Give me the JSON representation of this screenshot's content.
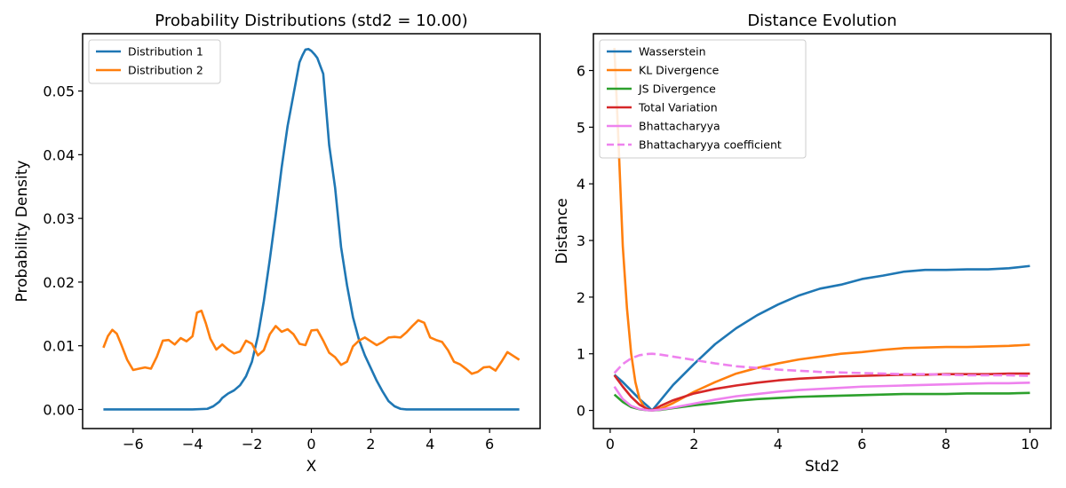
{
  "chart_data": [
    {
      "type": "line",
      "title": "Probability Distributions (std2 = 10.00)",
      "xlabel": "X",
      "ylabel": "Probability Density",
      "xlim": [
        -7.7,
        7.7
      ],
      "ylim": [
        -0.003,
        0.059
      ],
      "xticks": [
        -6,
        -4,
        -2,
        0,
        2,
        4,
        6
      ],
      "xtick_labels": [
        "−6",
        "−4",
        "−2",
        "0",
        "2",
        "4",
        "6"
      ],
      "yticks": [
        0.0,
        0.01,
        0.02,
        0.03,
        0.04,
        0.05
      ],
      "ytick_labels": [
        "0.00",
        "0.01",
        "0.02",
        "0.03",
        "0.04",
        "0.05"
      ],
      "grid": false,
      "legend_position": "upper left",
      "series": [
        {
          "name": "Distribution 1",
          "color": "#1f77b4",
          "dash": false,
          "x": [
            -7,
            -6,
            -5,
            -4,
            -3.5,
            -3.3,
            -3.1,
            -3,
            -2.8,
            -2.6,
            -2.4,
            -2.2,
            -2.0,
            -1.8,
            -1.6,
            -1.4,
            -1.2,
            -1.0,
            -0.8,
            -0.6,
            -0.4,
            -0.3,
            -0.2,
            -0.1,
            0.0,
            0.1,
            0.2,
            0.4,
            0.6,
            0.8,
            1.0,
            1.2,
            1.4,
            1.6,
            1.8,
            2.0,
            2.2,
            2.4,
            2.6,
            2.8,
            3.0,
            3.2,
            3.4,
            3.6,
            4,
            5,
            6,
            7
          ],
          "y": [
            0.0,
            0.0,
            0.0,
            0.0,
            0.0001,
            0.0005,
            0.0012,
            0.0018,
            0.0025,
            0.003,
            0.0038,
            0.0052,
            0.0075,
            0.0115,
            0.017,
            0.0235,
            0.0305,
            0.038,
            0.0445,
            0.0495,
            0.0545,
            0.0556,
            0.0565,
            0.0566,
            0.0563,
            0.0558,
            0.0552,
            0.0527,
            0.0415,
            0.0348,
            0.0255,
            0.0195,
            0.0145,
            0.011,
            0.0085,
            0.0065,
            0.0045,
            0.0028,
            0.0013,
            0.0005,
            0.0001,
            0.0,
            0.0,
            0.0,
            0.0,
            0.0,
            0.0,
            0.0
          ]
        },
        {
          "name": "Distribution 2",
          "color": "#ff7f0e",
          "dash": false,
          "x": [
            -7.0,
            -6.85,
            -6.7,
            -6.55,
            -6.4,
            -6.2,
            -6.0,
            -5.8,
            -5.6,
            -5.4,
            -5.2,
            -5.0,
            -4.8,
            -4.6,
            -4.4,
            -4.2,
            -4.0,
            -3.85,
            -3.7,
            -3.55,
            -3.4,
            -3.2,
            -3.0,
            -2.8,
            -2.6,
            -2.4,
            -2.2,
            -2.0,
            -1.8,
            -1.6,
            -1.4,
            -1.2,
            -1.0,
            -0.8,
            -0.6,
            -0.4,
            -0.2,
            0.0,
            0.2,
            0.4,
            0.6,
            0.8,
            1.0,
            1.2,
            1.4,
            1.6,
            1.8,
            2.0,
            2.2,
            2.4,
            2.6,
            2.8,
            3.0,
            3.2,
            3.4,
            3.6,
            3.8,
            4.0,
            4.2,
            4.4,
            4.6,
            4.8,
            5.0,
            5.2,
            5.4,
            5.6,
            5.8,
            6.0,
            6.2,
            6.4,
            6.6,
            6.8,
            7.0
          ],
          "y": [
            0.0097,
            0.0115,
            0.0125,
            0.0119,
            0.0102,
            0.0078,
            0.0062,
            0.0064,
            0.0066,
            0.0064,
            0.0083,
            0.0108,
            0.0109,
            0.0102,
            0.0112,
            0.0107,
            0.0115,
            0.0152,
            0.0155,
            0.0135,
            0.0111,
            0.0094,
            0.0102,
            0.0094,
            0.0088,
            0.0091,
            0.0108,
            0.0103,
            0.0085,
            0.0093,
            0.0118,
            0.0131,
            0.0122,
            0.0126,
            0.0118,
            0.0103,
            0.0101,
            0.0124,
            0.0125,
            0.0108,
            0.0089,
            0.0082,
            0.007,
            0.0075,
            0.0099,
            0.0108,
            0.0113,
            0.0107,
            0.0101,
            0.0106,
            0.0113,
            0.0114,
            0.0113,
            0.0121,
            0.0131,
            0.014,
            0.0136,
            0.0113,
            0.0109,
            0.0106,
            0.0093,
            0.0075,
            0.0071,
            0.0064,
            0.0056,
            0.0059,
            0.0066,
            0.0067,
            0.0061,
            0.0075,
            0.009,
            0.0084,
            0.0078
          ]
        }
      ]
    },
    {
      "type": "line",
      "title": "Distance Evolution",
      "xlabel": "Std2",
      "ylabel": "Distance",
      "xlim": [
        -0.4,
        10.5
      ],
      "ylim": [
        -0.32,
        6.65
      ],
      "xticks": [
        0,
        2,
        4,
        6,
        8,
        10
      ],
      "xtick_labels": [
        "0",
        "2",
        "4",
        "6",
        "8",
        "10"
      ],
      "yticks": [
        0,
        1,
        2,
        3,
        4,
        5,
        6
      ],
      "ytick_labels": [
        "0",
        "1",
        "2",
        "3",
        "4",
        "5",
        "6"
      ],
      "grid": false,
      "legend_position": "upper left",
      "series": [
        {
          "name": "Wasserstein",
          "color": "#1f77b4",
          "dash": false,
          "x": [
            0.1,
            0.3,
            0.5,
            0.7,
            0.9,
            1.0,
            1.2,
            1.5,
            2.0,
            2.5,
            3.0,
            3.5,
            4.0,
            4.5,
            5.0,
            5.5,
            6.0,
            6.5,
            7.0,
            7.5,
            8.0,
            8.5,
            9.0,
            9.5,
            10.0
          ],
          "y": [
            0.63,
            0.5,
            0.35,
            0.2,
            0.07,
            0.0,
            0.18,
            0.45,
            0.82,
            1.17,
            1.45,
            1.68,
            1.87,
            2.03,
            2.15,
            2.22,
            2.32,
            2.38,
            2.45,
            2.48,
            2.48,
            2.49,
            2.49,
            2.51,
            2.55
          ]
        },
        {
          "name": "KL Divergence",
          "color": "#ff7f0e",
          "dash": false,
          "x": [
            0.1,
            0.2,
            0.3,
            0.4,
            0.5,
            0.6,
            0.7,
            0.8,
            0.9,
            1.0,
            1.2,
            1.5,
            2.0,
            2.5,
            3.0,
            3.5,
            4.0,
            4.5,
            5.0,
            5.5,
            6.0,
            6.5,
            7.0,
            7.5,
            8.0,
            8.5,
            9.0,
            9.5,
            10.0
          ],
          "y": [
            6.4,
            4.7,
            2.9,
            1.8,
            1.0,
            0.5,
            0.2,
            0.07,
            0.01,
            0.0,
            0.03,
            0.13,
            0.33,
            0.5,
            0.65,
            0.75,
            0.83,
            0.9,
            0.95,
            1.0,
            1.03,
            1.07,
            1.1,
            1.11,
            1.12,
            1.12,
            1.13,
            1.14,
            1.16
          ]
        },
        {
          "name": "JS Divergence",
          "color": "#2ca02c",
          "dash": false,
          "x": [
            0.1,
            0.3,
            0.5,
            0.7,
            0.9,
            1.0,
            1.2,
            1.5,
            2.0,
            2.5,
            3.0,
            3.5,
            4.0,
            4.5,
            5.0,
            5.5,
            6.0,
            6.5,
            7.0,
            7.5,
            8.0,
            8.5,
            9.0,
            9.5,
            10.0
          ],
          "y": [
            0.28,
            0.15,
            0.06,
            0.02,
            0.003,
            0.0,
            0.01,
            0.04,
            0.09,
            0.13,
            0.17,
            0.2,
            0.22,
            0.24,
            0.25,
            0.26,
            0.27,
            0.28,
            0.29,
            0.29,
            0.29,
            0.3,
            0.3,
            0.3,
            0.31
          ]
        },
        {
          "name": "Total Variation",
          "color": "#d62728",
          "dash": false,
          "x": [
            0.1,
            0.3,
            0.5,
            0.7,
            0.9,
            1.0,
            1.2,
            1.5,
            2.0,
            2.5,
            3.0,
            3.5,
            4.0,
            4.5,
            5.0,
            5.5,
            6.0,
            6.5,
            7.0,
            7.5,
            8.0,
            8.5,
            9.0,
            9.5,
            10.0
          ],
          "y": [
            0.62,
            0.42,
            0.24,
            0.1,
            0.02,
            0.0,
            0.08,
            0.18,
            0.3,
            0.38,
            0.44,
            0.49,
            0.53,
            0.56,
            0.58,
            0.6,
            0.61,
            0.62,
            0.63,
            0.63,
            0.64,
            0.64,
            0.64,
            0.65,
            0.65
          ]
        },
        {
          "name": "Bhattacharyya",
          "color": "#ee82ee",
          "dash": false,
          "x": [
            0.1,
            0.3,
            0.5,
            0.7,
            0.9,
            1.0,
            1.2,
            1.5,
            2.0,
            2.5,
            3.0,
            3.5,
            4.0,
            4.5,
            5.0,
            5.5,
            6.0,
            6.5,
            7.0,
            7.5,
            8.0,
            8.5,
            9.0,
            9.5,
            10.0
          ],
          "y": [
            0.42,
            0.2,
            0.08,
            0.025,
            0.003,
            0.0,
            0.015,
            0.05,
            0.12,
            0.19,
            0.25,
            0.29,
            0.33,
            0.36,
            0.38,
            0.4,
            0.42,
            0.43,
            0.44,
            0.45,
            0.46,
            0.47,
            0.48,
            0.48,
            0.49
          ]
        },
        {
          "name": "Bhattacharyya coefficient",
          "color": "#ee82ee",
          "dash": true,
          "x": [
            0.1,
            0.3,
            0.5,
            0.7,
            0.9,
            1.0,
            1.2,
            1.5,
            2.0,
            2.5,
            3.0,
            3.5,
            4.0,
            4.5,
            5.0,
            5.5,
            6.0,
            6.5,
            7.0,
            7.5,
            8.0,
            8.5,
            9.0,
            9.5,
            10.0
          ],
          "y": [
            0.66,
            0.82,
            0.92,
            0.975,
            0.997,
            1.0,
            0.985,
            0.95,
            0.89,
            0.83,
            0.78,
            0.75,
            0.72,
            0.7,
            0.68,
            0.67,
            0.66,
            0.65,
            0.64,
            0.64,
            0.63,
            0.62,
            0.62,
            0.62,
            0.61
          ]
        }
      ]
    }
  ]
}
